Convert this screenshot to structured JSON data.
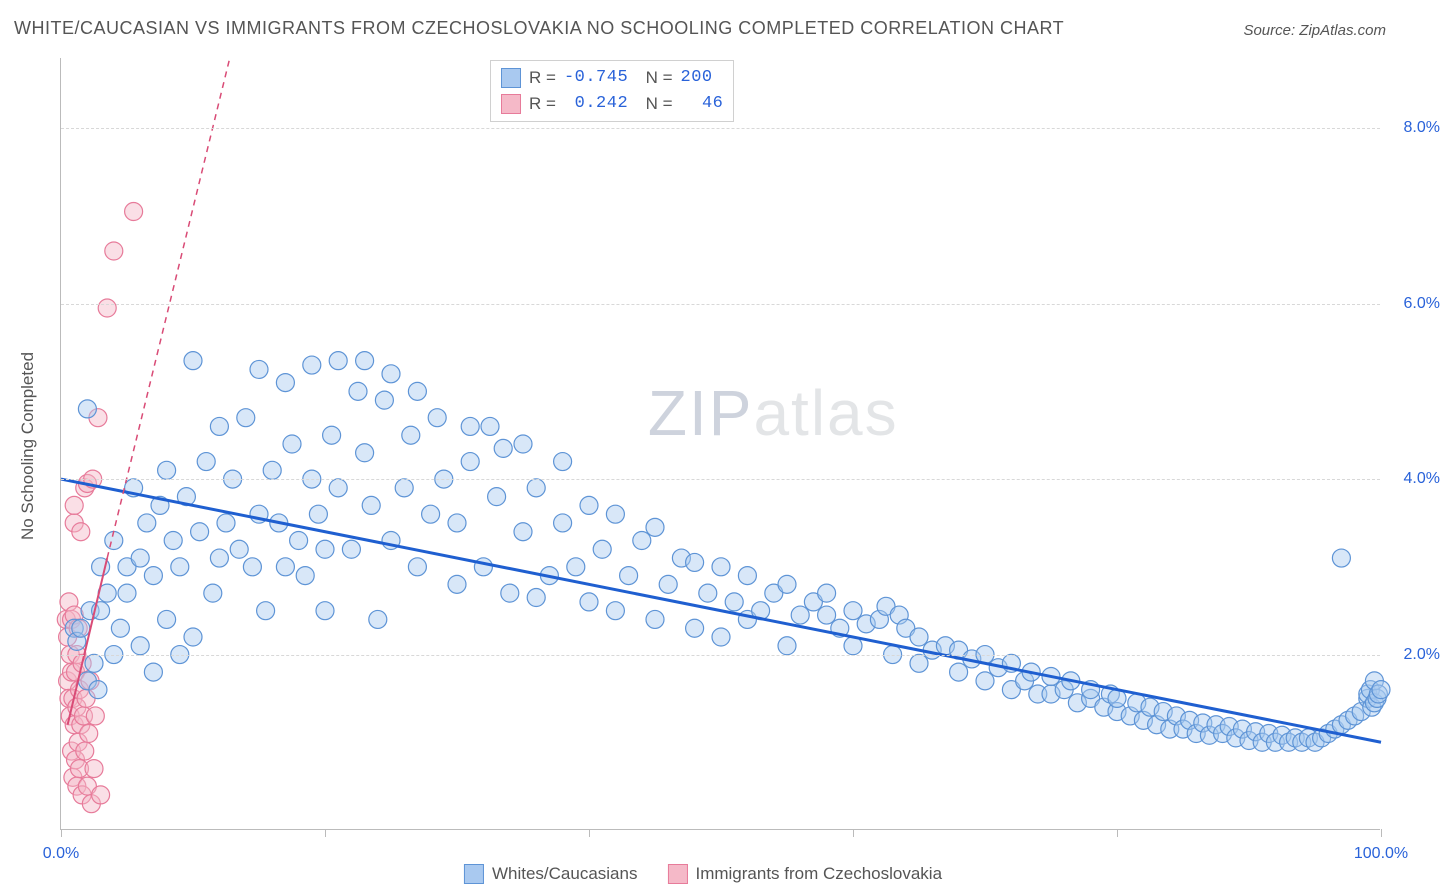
{
  "title": "WHITE/CAUCASIAN VS IMMIGRANTS FROM CZECHOSLOVAKIA NO SCHOOLING COMPLETED CORRELATION CHART",
  "source_label": "Source: ZipAtlas.com",
  "y_axis_label": "No Schooling Completed",
  "watermark": {
    "part1": "ZIP",
    "part2": "atlas"
  },
  "chart": {
    "type": "scatter",
    "background_color": "#ffffff",
    "grid_color": "#d8d8d8",
    "axis_color": "#bbbbbb",
    "xlim": [
      0,
      100
    ],
    "ylim": [
      0,
      8.8
    ],
    "x_ticks": [
      0,
      20,
      40,
      60,
      80,
      100
    ],
    "x_tick_labels": [
      "0.0%",
      "",
      "",
      "",
      "",
      "100.0%"
    ],
    "y_ticks": [
      2.0,
      4.0,
      6.0,
      8.0
    ],
    "y_tick_labels": [
      "2.0%",
      "4.0%",
      "6.0%",
      "8.0%"
    ],
    "marker_radius": 9,
    "marker_opacity": 0.45,
    "line_width_main": 3,
    "line_width_secondary": 2,
    "dash_pattern": "6,5",
    "series": [
      {
        "name": "Whites/Caucasians",
        "color_fill": "#a9c9f0",
        "color_stroke": "#5e94d6",
        "trend_color": "#1f5fd0",
        "trend": {
          "x1": 0,
          "y1": 4.0,
          "x2": 100,
          "y2": 1.0
        },
        "R": "-0.745",
        "N": "200",
        "points": [
          [
            1.0,
            2.3
          ],
          [
            1.2,
            2.15
          ],
          [
            1.5,
            2.3
          ],
          [
            2.0,
            1.7
          ],
          [
            2.0,
            4.8
          ],
          [
            2.2,
            2.5
          ],
          [
            2.5,
            1.9
          ],
          [
            2.8,
            1.6
          ],
          [
            3.0,
            2.5
          ],
          [
            3.0,
            3.0
          ],
          [
            3.5,
            2.7
          ],
          [
            4.0,
            2.0
          ],
          [
            4.0,
            3.3
          ],
          [
            4.5,
            2.3
          ],
          [
            5.0,
            2.7
          ],
          [
            5.0,
            3.0
          ],
          [
            5.5,
            3.9
          ],
          [
            6.0,
            2.1
          ],
          [
            6.0,
            3.1
          ],
          [
            6.5,
            3.5
          ],
          [
            7.0,
            1.8
          ],
          [
            7.0,
            2.9
          ],
          [
            7.5,
            3.7
          ],
          [
            8.0,
            2.4
          ],
          [
            8.0,
            4.1
          ],
          [
            8.5,
            3.3
          ],
          [
            9.0,
            2.0
          ],
          [
            9.0,
            3.0
          ],
          [
            9.5,
            3.8
          ],
          [
            10.0,
            2.2
          ],
          [
            10.0,
            5.35
          ],
          [
            10.5,
            3.4
          ],
          [
            11.0,
            4.2
          ],
          [
            11.5,
            2.7
          ],
          [
            12.0,
            3.1
          ],
          [
            12.0,
            4.6
          ],
          [
            12.5,
            3.5
          ],
          [
            13.0,
            4.0
          ],
          [
            13.5,
            3.2
          ],
          [
            14.0,
            4.7
          ],
          [
            14.5,
            3.0
          ],
          [
            15.0,
            3.6
          ],
          [
            15.0,
            5.25
          ],
          [
            15.5,
            2.5
          ],
          [
            16.0,
            4.1
          ],
          [
            16.5,
            3.5
          ],
          [
            17.0,
            3.0
          ],
          [
            17.0,
            5.1
          ],
          [
            17.5,
            4.4
          ],
          [
            18.0,
            3.3
          ],
          [
            18.5,
            2.9
          ],
          [
            19.0,
            4.0
          ],
          [
            19.0,
            5.3
          ],
          [
            19.5,
            3.6
          ],
          [
            20.0,
            2.5
          ],
          [
            20.0,
            3.2
          ],
          [
            20.5,
            4.5
          ],
          [
            21.0,
            3.9
          ],
          [
            21.0,
            5.35
          ],
          [
            22.0,
            3.2
          ],
          [
            22.5,
            5.0
          ],
          [
            23.0,
            4.3
          ],
          [
            23.0,
            5.35
          ],
          [
            23.5,
            3.7
          ],
          [
            24.0,
            2.4
          ],
          [
            24.5,
            4.9
          ],
          [
            25.0,
            3.3
          ],
          [
            25.0,
            5.2
          ],
          [
            26.0,
            3.9
          ],
          [
            26.5,
            4.5
          ],
          [
            27.0,
            3.0
          ],
          [
            27.0,
            5.0
          ],
          [
            28.0,
            3.6
          ],
          [
            28.5,
            4.7
          ],
          [
            29.0,
            4.0
          ],
          [
            30.0,
            2.8
          ],
          [
            30.0,
            3.5
          ],
          [
            31.0,
            4.2
          ],
          [
            31.0,
            4.6
          ],
          [
            32.0,
            3.0
          ],
          [
            32.5,
            4.6
          ],
          [
            33.0,
            3.8
          ],
          [
            33.5,
            4.35
          ],
          [
            34.0,
            2.7
          ],
          [
            35.0,
            3.4
          ],
          [
            35.0,
            4.4
          ],
          [
            36.0,
            2.65
          ],
          [
            36.0,
            3.9
          ],
          [
            37.0,
            2.9
          ],
          [
            38.0,
            3.5
          ],
          [
            38.0,
            4.2
          ],
          [
            39.0,
            3.0
          ],
          [
            40.0,
            2.6
          ],
          [
            40.0,
            3.7
          ],
          [
            41.0,
            3.2
          ],
          [
            42.0,
            2.5
          ],
          [
            42.0,
            3.6
          ],
          [
            43.0,
            2.9
          ],
          [
            44.0,
            3.3
          ],
          [
            45.0,
            2.4
          ],
          [
            45.0,
            3.45
          ],
          [
            46.0,
            2.8
          ],
          [
            47.0,
            3.1
          ],
          [
            48.0,
            2.3
          ],
          [
            48.0,
            3.05
          ],
          [
            49.0,
            2.7
          ],
          [
            50.0,
            2.2
          ],
          [
            50.0,
            3.0
          ],
          [
            51.0,
            2.6
          ],
          [
            52.0,
            2.4
          ],
          [
            52.0,
            2.9
          ],
          [
            53.0,
            2.5
          ],
          [
            54.0,
            2.7
          ],
          [
            55.0,
            2.1
          ],
          [
            55.0,
            2.8
          ],
          [
            56.0,
            2.45
          ],
          [
            57.0,
            2.6
          ],
          [
            58.0,
            2.45
          ],
          [
            58.0,
            2.7
          ],
          [
            59.0,
            2.3
          ],
          [
            60.0,
            2.1
          ],
          [
            60.0,
            2.5
          ],
          [
            61.0,
            2.35
          ],
          [
            62.0,
            2.4
          ],
          [
            62.5,
            2.55
          ],
          [
            63.0,
            2.0
          ],
          [
            63.5,
            2.45
          ],
          [
            64.0,
            2.3
          ],
          [
            65.0,
            1.9
          ],
          [
            65.0,
            2.2
          ],
          [
            66.0,
            2.05
          ],
          [
            67.0,
            2.1
          ],
          [
            68.0,
            1.8
          ],
          [
            68.0,
            2.05
          ],
          [
            69.0,
            1.95
          ],
          [
            70.0,
            1.7
          ],
          [
            70.0,
            2.0
          ],
          [
            71.0,
            1.85
          ],
          [
            72.0,
            1.6
          ],
          [
            72.0,
            1.9
          ],
          [
            73.0,
            1.7
          ],
          [
            73.5,
            1.8
          ],
          [
            74.0,
            1.55
          ],
          [
            75.0,
            1.55
          ],
          [
            75.0,
            1.75
          ],
          [
            76.0,
            1.6
          ],
          [
            76.5,
            1.7
          ],
          [
            77.0,
            1.45
          ],
          [
            78.0,
            1.5
          ],
          [
            78.0,
            1.6
          ],
          [
            79.0,
            1.4
          ],
          [
            79.5,
            1.55
          ],
          [
            80.0,
            1.35
          ],
          [
            80.0,
            1.5
          ],
          [
            81.0,
            1.3
          ],
          [
            81.5,
            1.45
          ],
          [
            82.0,
            1.25
          ],
          [
            82.5,
            1.4
          ],
          [
            83.0,
            1.2
          ],
          [
            83.5,
            1.35
          ],
          [
            84.0,
            1.15
          ],
          [
            84.5,
            1.3
          ],
          [
            85.0,
            1.15
          ],
          [
            85.5,
            1.25
          ],
          [
            86.0,
            1.1
          ],
          [
            86.5,
            1.22
          ],
          [
            87.0,
            1.08
          ],
          [
            87.5,
            1.2
          ],
          [
            88.0,
            1.1
          ],
          [
            88.5,
            1.18
          ],
          [
            89.0,
            1.05
          ],
          [
            89.5,
            1.15
          ],
          [
            90.0,
            1.02
          ],
          [
            90.5,
            1.12
          ],
          [
            91.0,
            1.0
          ],
          [
            91.5,
            1.1
          ],
          [
            92.0,
            1.0
          ],
          [
            92.5,
            1.08
          ],
          [
            93.0,
            1.0
          ],
          [
            93.5,
            1.05
          ],
          [
            94.0,
            1.0
          ],
          [
            94.5,
            1.05
          ],
          [
            95.0,
            1.0
          ],
          [
            95.5,
            1.05
          ],
          [
            96.0,
            1.1
          ],
          [
            96.5,
            1.15
          ],
          [
            97.0,
            1.2
          ],
          [
            97.0,
            3.1
          ],
          [
            97.5,
            1.25
          ],
          [
            98.0,
            1.3
          ],
          [
            98.5,
            1.35
          ],
          [
            99.0,
            1.5
          ],
          [
            99.0,
            1.55
          ],
          [
            99.2,
            1.6
          ],
          [
            99.3,
            1.4
          ],
          [
            99.5,
            1.7
          ],
          [
            99.5,
            1.45
          ],
          [
            99.7,
            1.5
          ],
          [
            99.8,
            1.55
          ],
          [
            100.0,
            1.6
          ]
        ]
      },
      {
        "name": "Immigrants from Czechoslovakia",
        "color_fill": "#f5b9c8",
        "color_stroke": "#e77b9a",
        "trend_color": "#d94b76",
        "trend_solid": {
          "x1": 0.5,
          "y1": 1.2,
          "x2": 3.5,
          "y2": 3.1
        },
        "trend_dashed": {
          "x1": 3.5,
          "y1": 3.1,
          "x2": 18.0,
          "y2": 12.0
        },
        "R": "0.242",
        "N": "46",
        "points": [
          [
            0.4,
            2.4
          ],
          [
            0.5,
            1.7
          ],
          [
            0.5,
            2.2
          ],
          [
            0.6,
            1.5
          ],
          [
            0.6,
            2.6
          ],
          [
            0.7,
            1.3
          ],
          [
            0.7,
            2.0
          ],
          [
            0.8,
            0.9
          ],
          [
            0.8,
            1.8
          ],
          [
            0.8,
            2.4
          ],
          [
            0.9,
            0.6
          ],
          [
            0.9,
            1.5
          ],
          [
            1.0,
            1.2
          ],
          [
            1.0,
            2.45
          ],
          [
            1.0,
            3.5
          ],
          [
            1.1,
            0.8
          ],
          [
            1.1,
            1.8
          ],
          [
            1.2,
            0.5
          ],
          [
            1.2,
            1.4
          ],
          [
            1.2,
            2.0
          ],
          [
            1.3,
            1.0
          ],
          [
            1.3,
            2.3
          ],
          [
            1.4,
            0.7
          ],
          [
            1.4,
            1.6
          ],
          [
            1.5,
            1.2
          ],
          [
            1.5,
            3.4
          ],
          [
            1.6,
            0.4
          ],
          [
            1.6,
            1.9
          ],
          [
            1.7,
            1.3
          ],
          [
            1.8,
            3.9
          ],
          [
            1.8,
            0.9
          ],
          [
            1.9,
            1.5
          ],
          [
            2.0,
            3.95
          ],
          [
            2.0,
            0.5
          ],
          [
            2.1,
            1.1
          ],
          [
            2.2,
            1.7
          ],
          [
            2.3,
            0.3
          ],
          [
            2.4,
            4.0
          ],
          [
            2.5,
            0.7
          ],
          [
            2.6,
            1.3
          ],
          [
            2.8,
            4.7
          ],
          [
            3.0,
            0.4
          ],
          [
            3.5,
            5.95
          ],
          [
            4.0,
            6.6
          ],
          [
            5.5,
            7.05
          ],
          [
            1.0,
            3.7
          ]
        ]
      }
    ]
  },
  "bottom_legend": {
    "series1_label": "Whites/Caucasians",
    "series2_label": "Immigrants from Czechoslovakia"
  }
}
